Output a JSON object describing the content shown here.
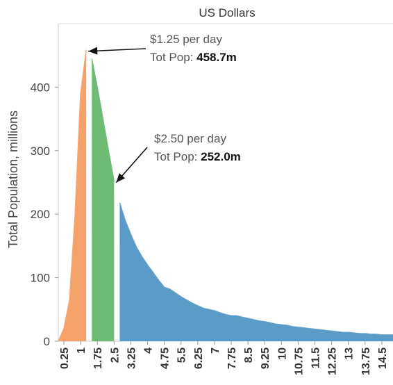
{
  "chart_data": {
    "type": "area",
    "title": "US Dollars",
    "xlabel": "",
    "ylabel": "Total Population, millions",
    "ylim": [
      0,
      500
    ],
    "y_ticks": [
      0,
      100,
      200,
      300,
      400
    ],
    "xlim": [
      0,
      15
    ],
    "x_tick_labels": [
      "0.25",
      "1",
      "1.75",
      "2.5",
      "3.25",
      "4",
      "4.75",
      "5.5",
      "6.25",
      "7",
      "7.75",
      "8.5",
      "9.25",
      "10",
      "10.75",
      "11.5",
      "12.25",
      "13",
      "13.75",
      "14.5"
    ],
    "grid": false,
    "series": [
      {
        "color": "#f5a26a",
        "points": [
          [
            0,
            0
          ],
          [
            0.25,
            20
          ],
          [
            0.5,
            65
          ],
          [
            0.75,
            200
          ],
          [
            1.0,
            390
          ],
          [
            1.25,
            458.7
          ]
        ]
      },
      {
        "color": "#6dbb74",
        "points": [
          [
            1.5,
            445
          ],
          [
            1.75,
            400
          ],
          [
            2.0,
            350
          ],
          [
            2.25,
            300
          ],
          [
            2.5,
            252.0
          ]
        ]
      },
      {
        "color": "#5b9bc8",
        "points": [
          [
            2.75,
            218
          ],
          [
            3.0,
            190
          ],
          [
            3.25,
            168
          ],
          [
            3.5,
            148
          ],
          [
            3.75,
            133
          ],
          [
            4.0,
            120
          ],
          [
            4.25,
            108
          ],
          [
            4.5,
            96
          ],
          [
            4.75,
            85
          ],
          [
            5.0,
            82
          ],
          [
            5.25,
            76
          ],
          [
            5.5,
            70
          ],
          [
            5.75,
            65
          ],
          [
            6.0,
            60
          ],
          [
            6.25,
            56
          ],
          [
            6.5,
            52
          ],
          [
            6.75,
            50
          ],
          [
            7.0,
            48
          ],
          [
            7.25,
            45
          ],
          [
            7.5,
            42
          ],
          [
            7.75,
            40
          ],
          [
            8.0,
            40
          ],
          [
            8.25,
            38
          ],
          [
            8.5,
            36
          ],
          [
            8.75,
            34
          ],
          [
            9.0,
            32
          ],
          [
            9.25,
            31
          ],
          [
            9.5,
            29
          ],
          [
            9.75,
            27
          ],
          [
            10.0,
            26
          ],
          [
            10.25,
            25
          ],
          [
            10.5,
            23
          ],
          [
            10.75,
            22
          ],
          [
            11.0,
            21
          ],
          [
            11.25,
            20
          ],
          [
            11.5,
            19
          ],
          [
            11.75,
            18
          ],
          [
            12.0,
            17
          ],
          [
            12.25,
            16
          ],
          [
            12.5,
            15
          ],
          [
            12.75,
            14
          ],
          [
            13.0,
            14
          ],
          [
            13.25,
            13
          ],
          [
            13.5,
            12
          ],
          [
            13.75,
            12
          ],
          [
            14.0,
            11
          ],
          [
            14.25,
            11
          ],
          [
            14.5,
            10
          ],
          [
            14.75,
            10
          ],
          [
            15.0,
            10
          ]
        ]
      }
    ],
    "annotations": [
      {
        "text": "$1.25 per day",
        "label": "Tot Pop: ",
        "value": "458.7m",
        "target_x": 1.25,
        "target_y": 458.7
      },
      {
        "text": "$2.50 per day",
        "label": "Tot Pop: ",
        "value": "252.0m",
        "target_x": 2.5,
        "target_y": 252.0
      }
    ]
  }
}
